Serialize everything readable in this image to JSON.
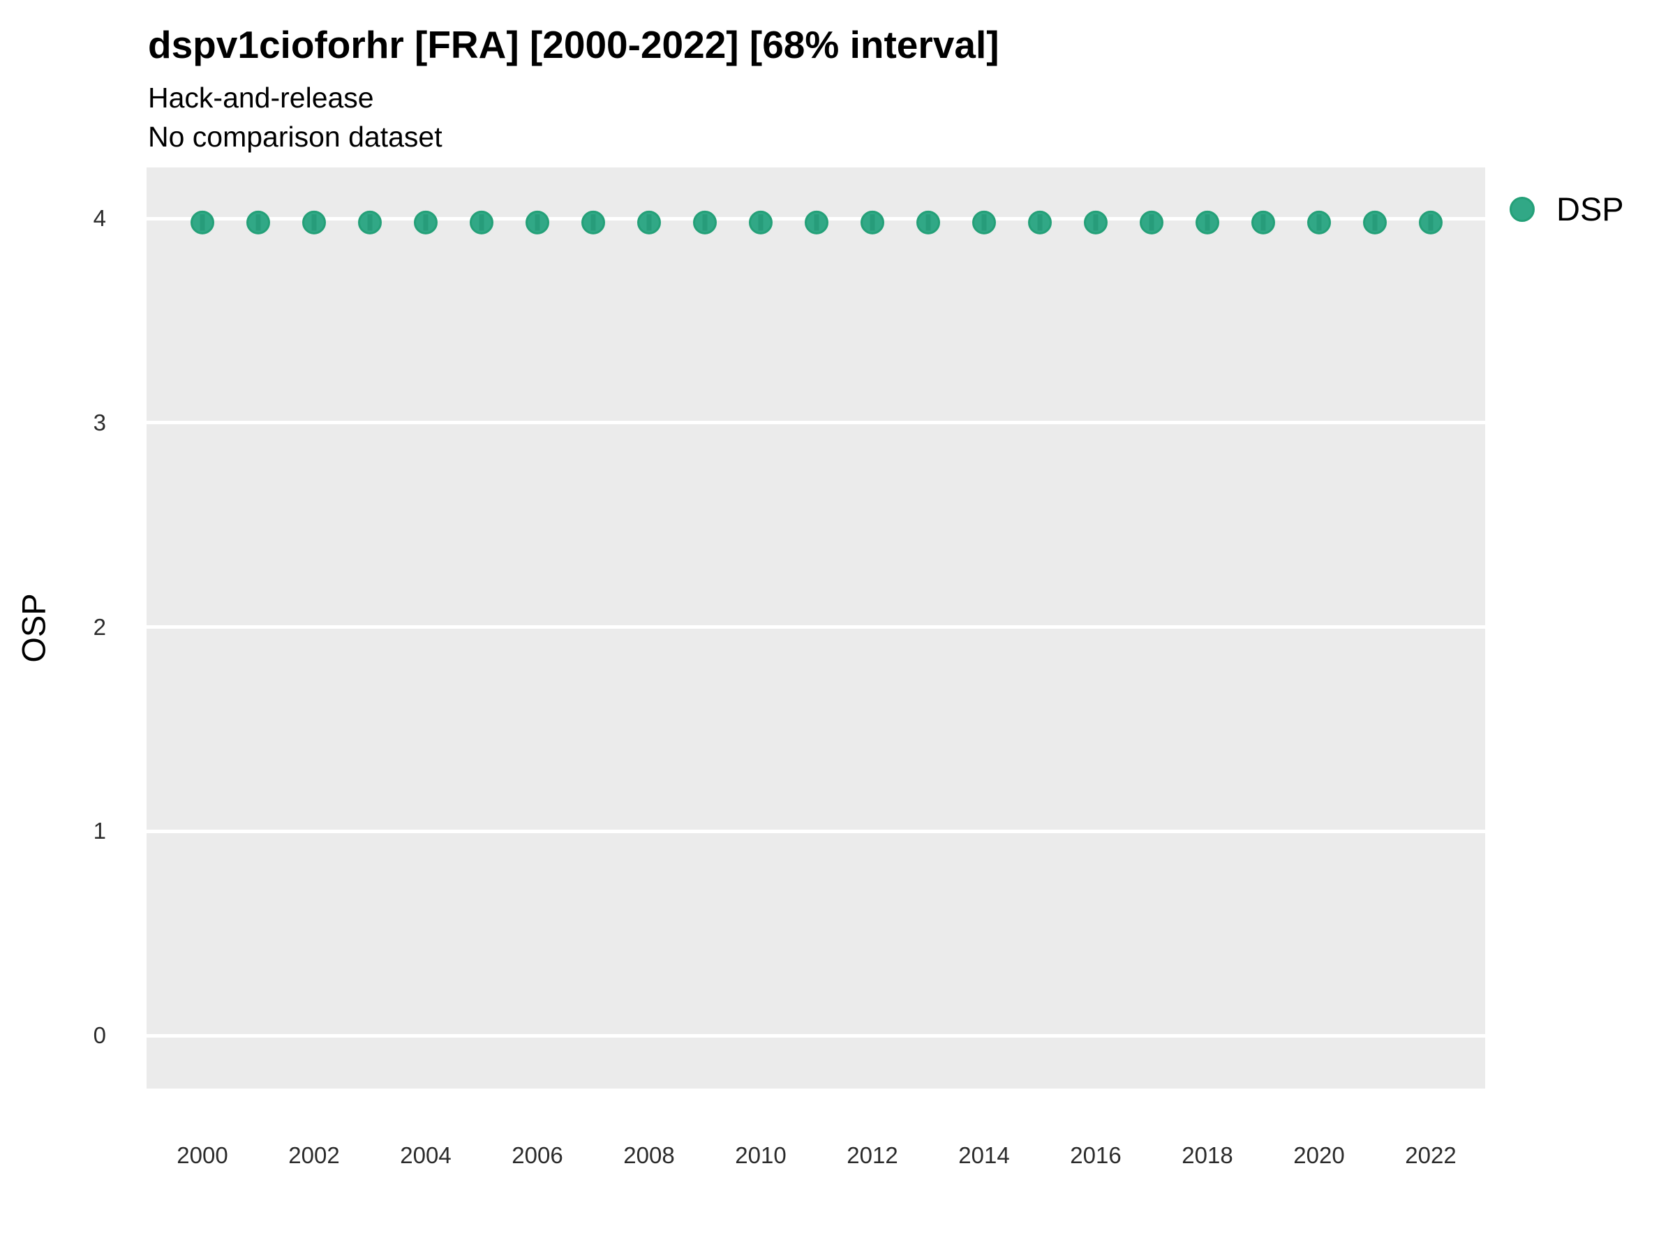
{
  "header": {
    "title": "dspv1cioforhr [FRA] [2000-2022] [68% interval]",
    "subtitle_line1": "Hack-and-release",
    "subtitle_line2": "No comparison dataset"
  },
  "axes": {
    "y_label": "OSP",
    "x_label": ""
  },
  "legend": {
    "label": "DSP",
    "position": "right-top"
  },
  "colors": {
    "panel_bg": "#EBEBEB",
    "grid": "#FFFFFF",
    "point_fill": "#31A886",
    "point_border": "#24A078",
    "errorbar": "#1B8F6C",
    "title_text": "#000000",
    "tick_text": "#2B2B2B"
  },
  "chart_data": {
    "type": "scatter",
    "title": "dspv1cioforhr [FRA] [2000-2022] [68% interval]",
    "subtitle": [
      "Hack-and-release",
      "No comparison dataset"
    ],
    "xlabel": "",
    "ylabel": "OSP",
    "x": [
      2000,
      2001,
      2002,
      2003,
      2004,
      2005,
      2006,
      2007,
      2008,
      2009,
      2010,
      2011,
      2012,
      2013,
      2014,
      2015,
      2016,
      2017,
      2018,
      2019,
      2020,
      2021,
      2022
    ],
    "series": [
      {
        "name": "DSP",
        "values": [
          3.98,
          3.98,
          3.98,
          3.98,
          3.98,
          3.98,
          3.98,
          3.98,
          3.98,
          3.98,
          3.98,
          3.98,
          3.98,
          3.98,
          3.98,
          3.98,
          3.98,
          3.98,
          3.98,
          3.98,
          3.98,
          3.98,
          3.98
        ],
        "interval_68_low": [
          3.94,
          3.94,
          3.94,
          3.94,
          3.94,
          3.94,
          3.94,
          3.94,
          3.94,
          3.94,
          3.94,
          3.94,
          3.94,
          3.94,
          3.94,
          3.94,
          3.94,
          3.94,
          3.94,
          3.94,
          3.94,
          3.94,
          3.94
        ],
        "interval_68_high": [
          4.02,
          4.02,
          4.02,
          4.02,
          4.02,
          4.02,
          4.02,
          4.02,
          4.02,
          4.02,
          4.02,
          4.02,
          4.02,
          4.02,
          4.02,
          4.02,
          4.02,
          4.02,
          4.02,
          4.02,
          4.02,
          4.02,
          4.02
        ]
      }
    ],
    "xticks": [
      2000,
      2002,
      2004,
      2006,
      2008,
      2010,
      2012,
      2014,
      2016,
      2018,
      2020,
      2022
    ],
    "yticks": [
      4,
      3,
      2,
      1,
      0
    ],
    "ylim": [
      -0.26,
      4.25
    ],
    "xlim": [
      1999,
      2023
    ],
    "grid": "horizontal major gridlines only, white on grey panel",
    "legend_position": "right"
  }
}
